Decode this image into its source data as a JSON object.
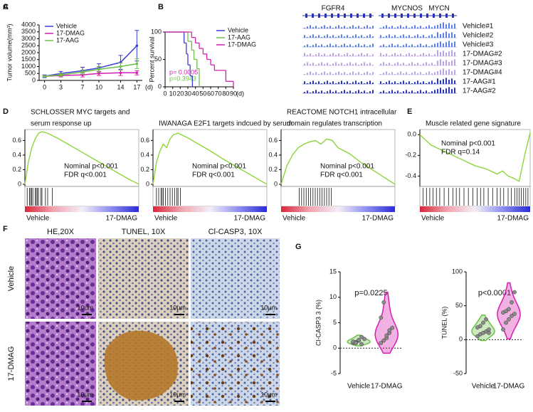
{
  "chart_data": [
    {
      "panel": "A",
      "type": "line",
      "ylabel": "Tumor volume(mm³)",
      "xlabel": "(d)",
      "x": [
        0,
        3,
        7,
        10,
        14,
        17
      ],
      "xlim": [
        -1,
        18
      ],
      "xticks": [
        0,
        3,
        7,
        10,
        14,
        17
      ],
      "ylim": [
        0,
        4000
      ],
      "yticks": [
        0,
        500,
        1000,
        1500,
        2000,
        2500,
        3000,
        3500,
        4000
      ],
      "series": [
        {
          "name": "Vehicle",
          "color": "#3d3dd6",
          "values": [
            300,
            500,
            700,
            900,
            1300,
            2500
          ],
          "errors": [
            100,
            150,
            250,
            300,
            500,
            1100
          ]
        },
        {
          "name": "17-DMAG",
          "color": "#d61fb0",
          "values": [
            300,
            350,
            400,
            500,
            550,
            550
          ],
          "errors": [
            50,
            100,
            150,
            150,
            200,
            150
          ]
        },
        {
          "name": "17-AAG",
          "color": "#6cc04a",
          "values": [
            300,
            400,
            600,
            800,
            1000,
            1200
          ],
          "errors": [
            50,
            100,
            150,
            200,
            250,
            350
          ]
        }
      ]
    },
    {
      "panel": "B",
      "type": "step",
      "ylabel": "Percent survival",
      "xlabel": "(d)",
      "xlim": [
        0,
        90
      ],
      "xticks": [
        0,
        10,
        20,
        30,
        40,
        50,
        60,
        70,
        80,
        90
      ],
      "ylim": [
        0,
        100
      ],
      "yticks": [
        0,
        50,
        100
      ],
      "series": [
        {
          "name": "Vehicle",
          "color": "#3d3dd6",
          "x": [
            0,
            25,
            28,
            30,
            33,
            36
          ],
          "values": [
            100,
            80,
            60,
            40,
            20,
            0
          ]
        },
        {
          "name": "17-AAG",
          "color": "#6cc04a",
          "x": [
            0,
            30,
            35,
            38,
            42,
            45
          ],
          "values": [
            100,
            83,
            67,
            50,
            33,
            0
          ]
        },
        {
          "name": "17-DMAG",
          "color": "#d61fb0",
          "x": [
            0,
            35,
            40,
            45,
            50,
            55,
            60,
            65,
            80,
            90
          ],
          "values": [
            100,
            90,
            80,
            70,
            60,
            50,
            40,
            30,
            10,
            0
          ]
        }
      ],
      "annotations": [
        {
          "text": "p= 0.0005",
          "color": "#d61fb0"
        },
        {
          "text": "p=0.3943",
          "color": "#6cc04a"
        }
      ]
    },
    {
      "panel": "D",
      "type": "gsea",
      "title": [
        "SCHLOSSER MYC targets and",
        "serum response up"
      ],
      "xlim": [
        0,
        100
      ],
      "ylim": [
        -0.03,
        0.75
      ],
      "yticks": [
        0,
        0.2,
        0.4,
        0.6
      ],
      "color": "#8fd43a",
      "x": [
        0,
        3,
        6,
        9,
        12,
        15,
        20,
        30,
        40,
        50,
        60,
        70,
        80,
        90,
        100
      ],
      "values": [
        0,
        0.3,
        0.5,
        0.62,
        0.7,
        0.72,
        0.7,
        0.62,
        0.53,
        0.44,
        0.35,
        0.26,
        0.17,
        0.08,
        0
      ],
      "hits": [
        2,
        4,
        5,
        6,
        7,
        9,
        10,
        11,
        12,
        14,
        15,
        18,
        20,
        24
      ],
      "annotations": [
        "Nominal p<0.001",
        "FDR q<0.001"
      ],
      "xlabels": [
        "Vehicle",
        "17-DMAG"
      ]
    },
    {
      "type": "gsea",
      "title": [
        "IWANAGA E2F1 targets indcued by serum"
      ],
      "xlim": [
        0,
        100
      ],
      "ylim": [
        -0.03,
        0.75
      ],
      "yticks": [
        0,
        0.2,
        0.4,
        0.6
      ],
      "color": "#8fd43a",
      "x": [
        0,
        3,
        6,
        9,
        12,
        15,
        18,
        22,
        30,
        40,
        50,
        60,
        70,
        80,
        90,
        100
      ],
      "values": [
        0,
        0.3,
        0.45,
        0.55,
        0.5,
        0.62,
        0.68,
        0.7,
        0.64,
        0.55,
        0.46,
        0.36,
        0.27,
        0.18,
        0.09,
        0
      ],
      "hits": [
        3,
        5,
        7,
        8,
        9,
        11,
        13,
        15,
        17,
        19,
        21,
        22,
        24
      ],
      "annotations": [
        "Nominal p<0.001",
        "FDR q<0.001"
      ],
      "xlabels": [
        "Vehicle",
        "17-DMAG"
      ]
    },
    {
      "type": "gsea",
      "title": [
        "REACTOME NOTCH1 intracellular",
        "domain regulates transcription"
      ],
      "xlim": [
        0,
        100
      ],
      "ylim": [
        -0.03,
        0.75
      ],
      "yticks": [
        0,
        0.2,
        0.4,
        0.6
      ],
      "color": "#8fd43a",
      "x": [
        0,
        5,
        10,
        15,
        20,
        25,
        30,
        35,
        40,
        45,
        50,
        60,
        70,
        80,
        90,
        100
      ],
      "values": [
        0,
        0.25,
        0.4,
        0.5,
        0.55,
        0.58,
        0.6,
        0.55,
        0.62,
        0.6,
        0.5,
        0.42,
        0.3,
        0.2,
        0.1,
        0
      ],
      "hits": [
        16,
        18,
        20,
        22,
        24,
        26,
        28,
        30,
        32,
        34,
        36,
        38,
        40,
        42,
        44
      ],
      "annotations": [
        "Nominal p<0.001",
        "FDR q<0.001"
      ],
      "xlabels": [
        "Vehicle",
        "17-DMAG"
      ]
    },
    {
      "panel": "E",
      "type": "gsea",
      "title": [
        "Muscle related gene signature"
      ],
      "xlim": [
        0,
        100
      ],
      "ylim": [
        -0.5,
        0.05
      ],
      "yticks": [
        {
          "value": 0,
          "label": "0.0"
        },
        -0.2,
        -0.4
      ],
      "color": "#8fd43a",
      "x": [
        0,
        10,
        20,
        30,
        40,
        50,
        60,
        70,
        75,
        80,
        85,
        90,
        95,
        100
      ],
      "values": [
        0,
        -0.1,
        -0.15,
        -0.2,
        -0.25,
        -0.3,
        -0.33,
        -0.38,
        -0.35,
        -0.4,
        -0.42,
        -0.45,
        -0.2,
        0.02
      ],
      "hits": [
        3,
        6,
        9,
        12,
        15,
        18,
        22,
        26,
        30,
        33,
        36,
        40,
        44,
        48,
        52,
        55,
        58,
        62,
        66,
        70,
        73,
        76,
        80,
        83,
        86,
        88,
        90,
        92,
        94,
        96,
        98
      ],
      "annotations": [
        "Nominal p<0.001",
        "FDR q=0.14"
      ],
      "xlabels": [
        "Vehicle",
        "17-DMAG"
      ]
    },
    {
      "panel": "G",
      "type": "violin",
      "ylabel": "Cl-CASP3 3 (%)",
      "ylim": [
        -5,
        15
      ],
      "yticks": [
        -5,
        0,
        5,
        10,
        15
      ],
      "categories": [
        "Vehicle",
        "17-DMAG"
      ],
      "point_color": "#8c8c8c",
      "annotation": "p=0.0225",
      "groups": [
        {
          "color": "#6cc04a",
          "values": [
            1,
            1.2,
            1.5,
            0.8,
            1.8,
            1.3,
            1.0,
            1.6,
            2.2
          ]
        },
        {
          "color": "#d61fb0",
          "values": [
            1,
            1.5,
            2,
            3,
            4,
            6,
            9,
            2.5,
            3.5
          ]
        }
      ]
    },
    {
      "type": "violin",
      "ylabel": "TUNEL (%)",
      "ylim": [
        -50,
        100
      ],
      "yticks": [
        -50,
        0,
        50,
        100
      ],
      "categories": [
        "Vehicle",
        "17-DMAG"
      ],
      "point_color": "#8c8c8c",
      "annotation": "p<0.0001",
      "groups": [
        {
          "color": "#6cc04a",
          "values": [
            5,
            8,
            10,
            12,
            15,
            18,
            20,
            25,
            30,
            10
          ]
        },
        {
          "color": "#d61fb0",
          "values": [
            15,
            25,
            30,
            35,
            38,
            40,
            42,
            45,
            55,
            70
          ]
        }
      ]
    }
  ],
  "tracks": {
    "panel": "C",
    "genes": [
      "FGFR4",
      "MYCNOS",
      "MYCN"
    ],
    "samples": [
      {
        "name": "Vehicle#1",
        "color": "#5b7fe6"
      },
      {
        "name": "Vehicle#2",
        "color": "#5b7fe6"
      },
      {
        "name": "Vehicle#3",
        "color": "#5b7fe6"
      },
      {
        "name": "17-DMAG#2",
        "color": "#b9a3e0"
      },
      {
        "name": "17-DMAG#3",
        "color": "#b9a3e0"
      },
      {
        "name": "17-DMAG#4",
        "color": "#b9a3e0"
      },
      {
        "name": "17-AAG#1",
        "color": "#2a36b8"
      },
      {
        "name": "17-AAG#2",
        "color": "#2a36b8"
      }
    ]
  },
  "micrographs": {
    "panel": "F",
    "columns": [
      "HE,20X",
      "TUNEL, 10X",
      "Cl-CASP3, 10X"
    ],
    "rows": [
      "Vehicle",
      "17-DMAG"
    ],
    "scale_bars": [
      [
        "10um",
        "10μm",
        "10μm"
      ],
      [
        "10μm",
        "10μm",
        "10μm"
      ]
    ]
  }
}
